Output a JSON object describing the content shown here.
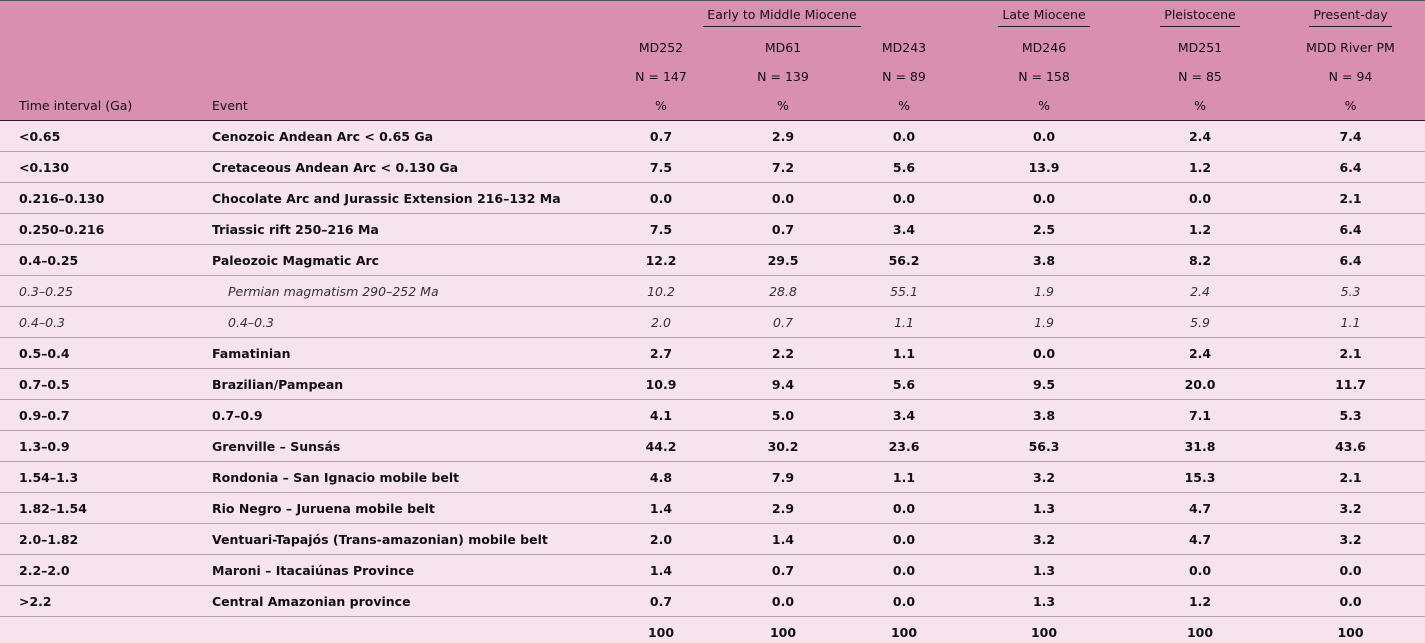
{
  "header": {
    "time_label": "Time interval (Ga)",
    "event_label": "Event",
    "groups": [
      {
        "label": "Early to Middle Miocene",
        "samples": [
          {
            "sample": "MD252",
            "n": "N = 147",
            "unit": "%"
          },
          {
            "sample": "MD61",
            "n": "N = 139",
            "unit": "%"
          },
          {
            "sample": "MD243",
            "n": "N = 89",
            "unit": "%"
          }
        ]
      },
      {
        "label": "Late Miocene",
        "samples": [
          {
            "sample": "MD246",
            "n": "N = 158",
            "unit": "%"
          }
        ]
      },
      {
        "label": "Pleistocene",
        "samples": [
          {
            "sample": "MD251",
            "n": "N = 85",
            "unit": "%"
          }
        ]
      },
      {
        "label": "Present-day",
        "samples": [
          {
            "sample": "MDD River PM",
            "n": "N = 94",
            "unit": "%"
          }
        ]
      }
    ]
  },
  "rows": [
    {
      "interval": "<0.65",
      "event": "Cenozoic Andean Arc < 0.65 Ga",
      "style": "bold",
      "values": [
        "0.7",
        "2.9",
        "0.0",
        "0.0",
        "2.4",
        "7.4"
      ]
    },
    {
      "interval": "<0.130",
      "event": "Cretaceous Andean Arc < 0.130 Ga",
      "style": "bold",
      "values": [
        "7.5",
        "7.2",
        "5.6",
        "13.9",
        "1.2",
        "6.4"
      ]
    },
    {
      "interval": "0.216–0.130",
      "event": "Chocolate Arc and Jurassic Extension 216–132 Ma",
      "style": "bold",
      "values": [
        "0.0",
        "0.0",
        "0.0",
        "0.0",
        "0.0",
        "2.1"
      ]
    },
    {
      "interval": "0.250–0.216",
      "event": "Triassic rift 250–216 Ma",
      "style": "bold",
      "values": [
        "7.5",
        "0.7",
        "3.4",
        "2.5",
        "1.2",
        "6.4"
      ]
    },
    {
      "interval": "0.4–0.25",
      "event": "Paleozoic Magmatic Arc",
      "style": "bold",
      "values": [
        "12.2",
        "29.5",
        "56.2",
        "3.8",
        "8.2",
        "6.4"
      ]
    },
    {
      "interval": "0.3–0.25",
      "event": "Permian magmatism 290–252 Ma",
      "style": "italic",
      "values": [
        "10.2",
        "28.8",
        "55.1",
        "1.9",
        "2.4",
        "5.3"
      ]
    },
    {
      "interval": "0.4–0.3",
      "event": "0.4–0.3",
      "style": "italic",
      "values": [
        "2.0",
        "0.7",
        "1.1",
        "1.9",
        "5.9",
        "1.1"
      ]
    },
    {
      "interval": "0.5–0.4",
      "event": "Famatinian",
      "style": "bold",
      "values": [
        "2.7",
        "2.2",
        "1.1",
        "0.0",
        "2.4",
        "2.1"
      ]
    },
    {
      "interval": "0.7–0.5",
      "event": "Brazilian/Pampean",
      "style": "bold",
      "values": [
        "10.9",
        "9.4",
        "5.6",
        "9.5",
        "20.0",
        "11.7"
      ]
    },
    {
      "interval": "0.9–0.7",
      "event": "0.7–0.9",
      "style": "bold",
      "values": [
        "4.1",
        "5.0",
        "3.4",
        "3.8",
        "7.1",
        "5.3"
      ]
    },
    {
      "interval": "1.3–0.9",
      "event": "Grenville – Sunsás",
      "style": "bold",
      "values": [
        "44.2",
        "30.2",
        "23.6",
        "56.3",
        "31.8",
        "43.6"
      ]
    },
    {
      "interval": "1.54–1.3",
      "event": "Rondonia – San Ignacio mobile belt",
      "style": "bold",
      "values": [
        "4.8",
        "7.9",
        "1.1",
        "3.2",
        "15.3",
        "2.1"
      ]
    },
    {
      "interval": "1.82–1.54",
      "event": "Rio Negro – Juruena mobile belt",
      "style": "bold",
      "values": [
        "1.4",
        "2.9",
        "0.0",
        "1.3",
        "4.7",
        "3.2"
      ]
    },
    {
      "interval": "2.0–1.82",
      "event": "Ventuari-Tapajós (Trans-amazonian) mobile belt",
      "style": "bold",
      "values": [
        "2.0",
        "1.4",
        "0.0",
        "3.2",
        "4.7",
        "3.2"
      ]
    },
    {
      "interval": "2.2–2.0",
      "event": "Maroni – Itacaiúnas Province",
      "style": "bold",
      "values": [
        "1.4",
        "0.7",
        "0.0",
        "1.3",
        "0.0",
        "0.0"
      ]
    },
    {
      "interval": ">2.2",
      "event": "Central Amazonian province",
      "style": "bold",
      "values": [
        "0.7",
        "0.0",
        "0.0",
        "1.3",
        "1.2",
        "0.0"
      ]
    }
  ],
  "totals": [
    "100",
    "100",
    "100",
    "100",
    "100",
    "100"
  ]
}
